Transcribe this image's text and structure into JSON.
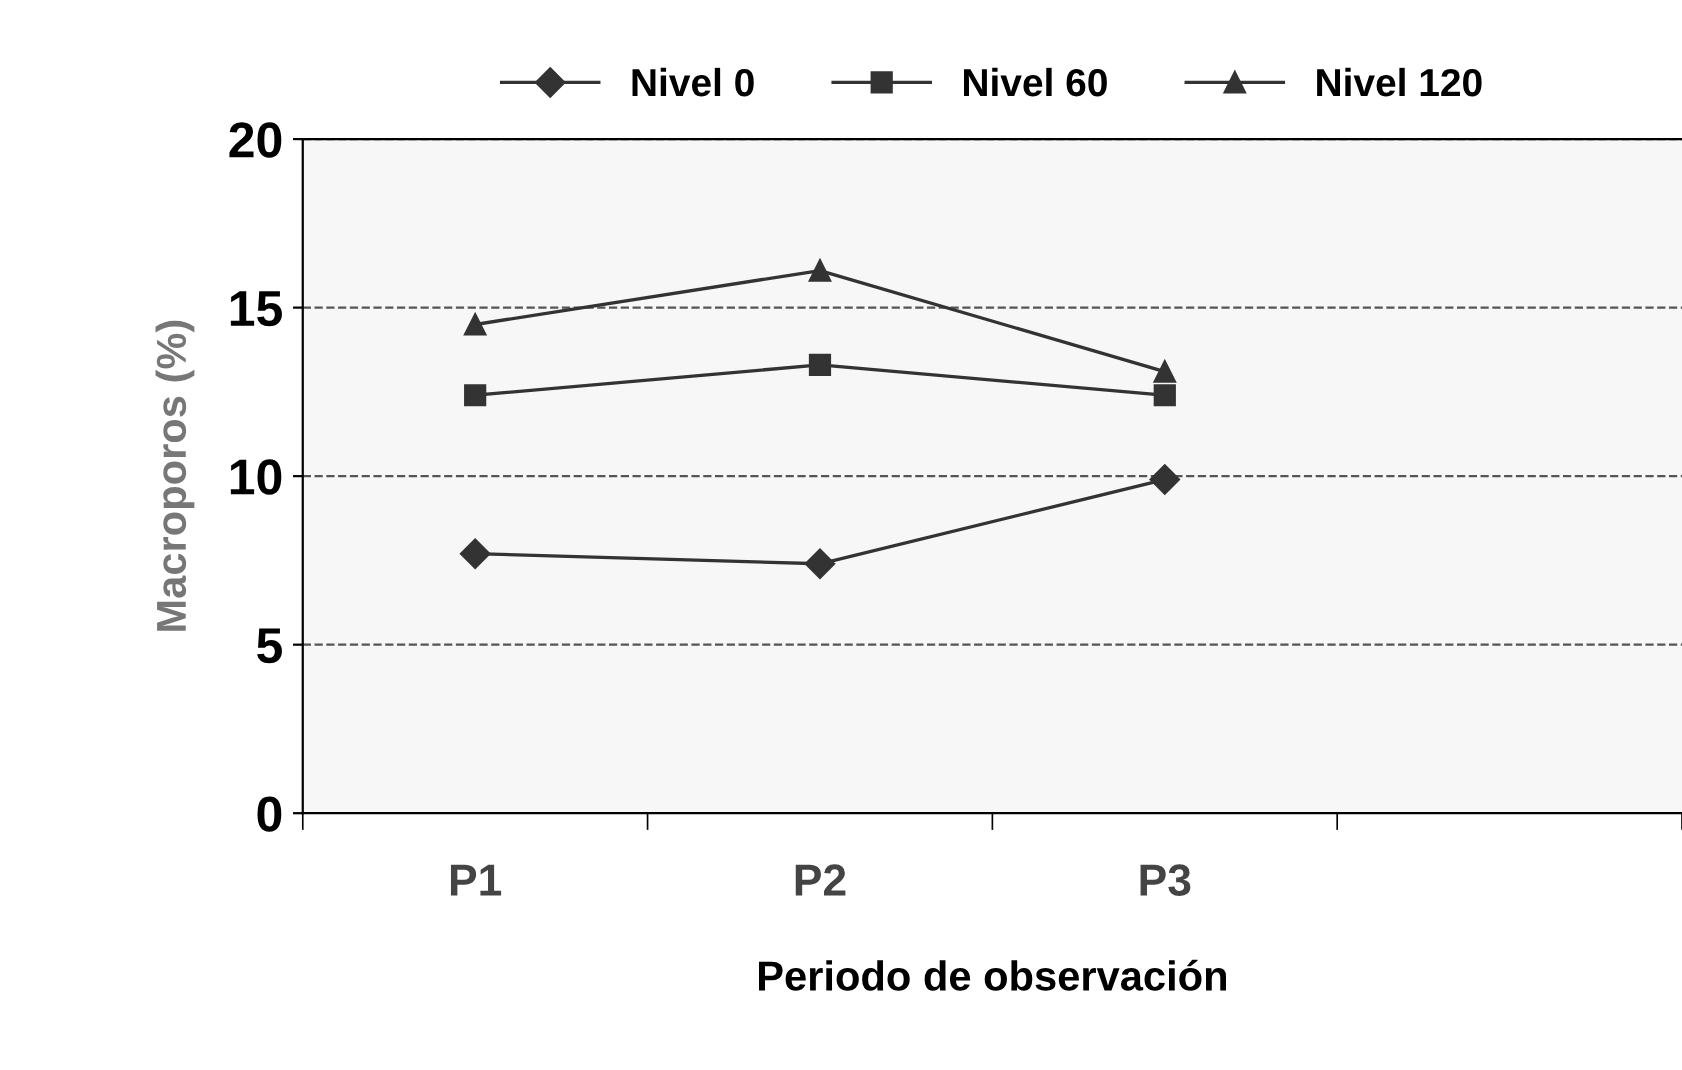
{
  "chart_data": {
    "type": "line",
    "xlabel": "Periodo de observación",
    "ylabel": "Macroporos (%)",
    "categories": [
      "P1",
      "P2",
      "P3",
      null
    ],
    "series": [
      {
        "name": "Nivel 0",
        "color": "#333333",
        "marker": "diamond",
        "values": [
          7.7,
          7.4,
          9.9,
          null
        ]
      },
      {
        "name": "Nivel 60",
        "color": "#333333",
        "marker": "square",
        "values": [
          12.4,
          13.3,
          12.4,
          null
        ]
      },
      {
        "name": "Nivel 120",
        "color": "#333333",
        "marker": "triangle",
        "values": [
          14.5,
          16.1,
          13.1,
          null
        ]
      }
    ],
    "ylim": [
      0,
      20
    ],
    "yticks": [
      0,
      5,
      10,
      15,
      20
    ],
    "grid": "y",
    "legend": "top",
    "line_style": "solid"
  }
}
